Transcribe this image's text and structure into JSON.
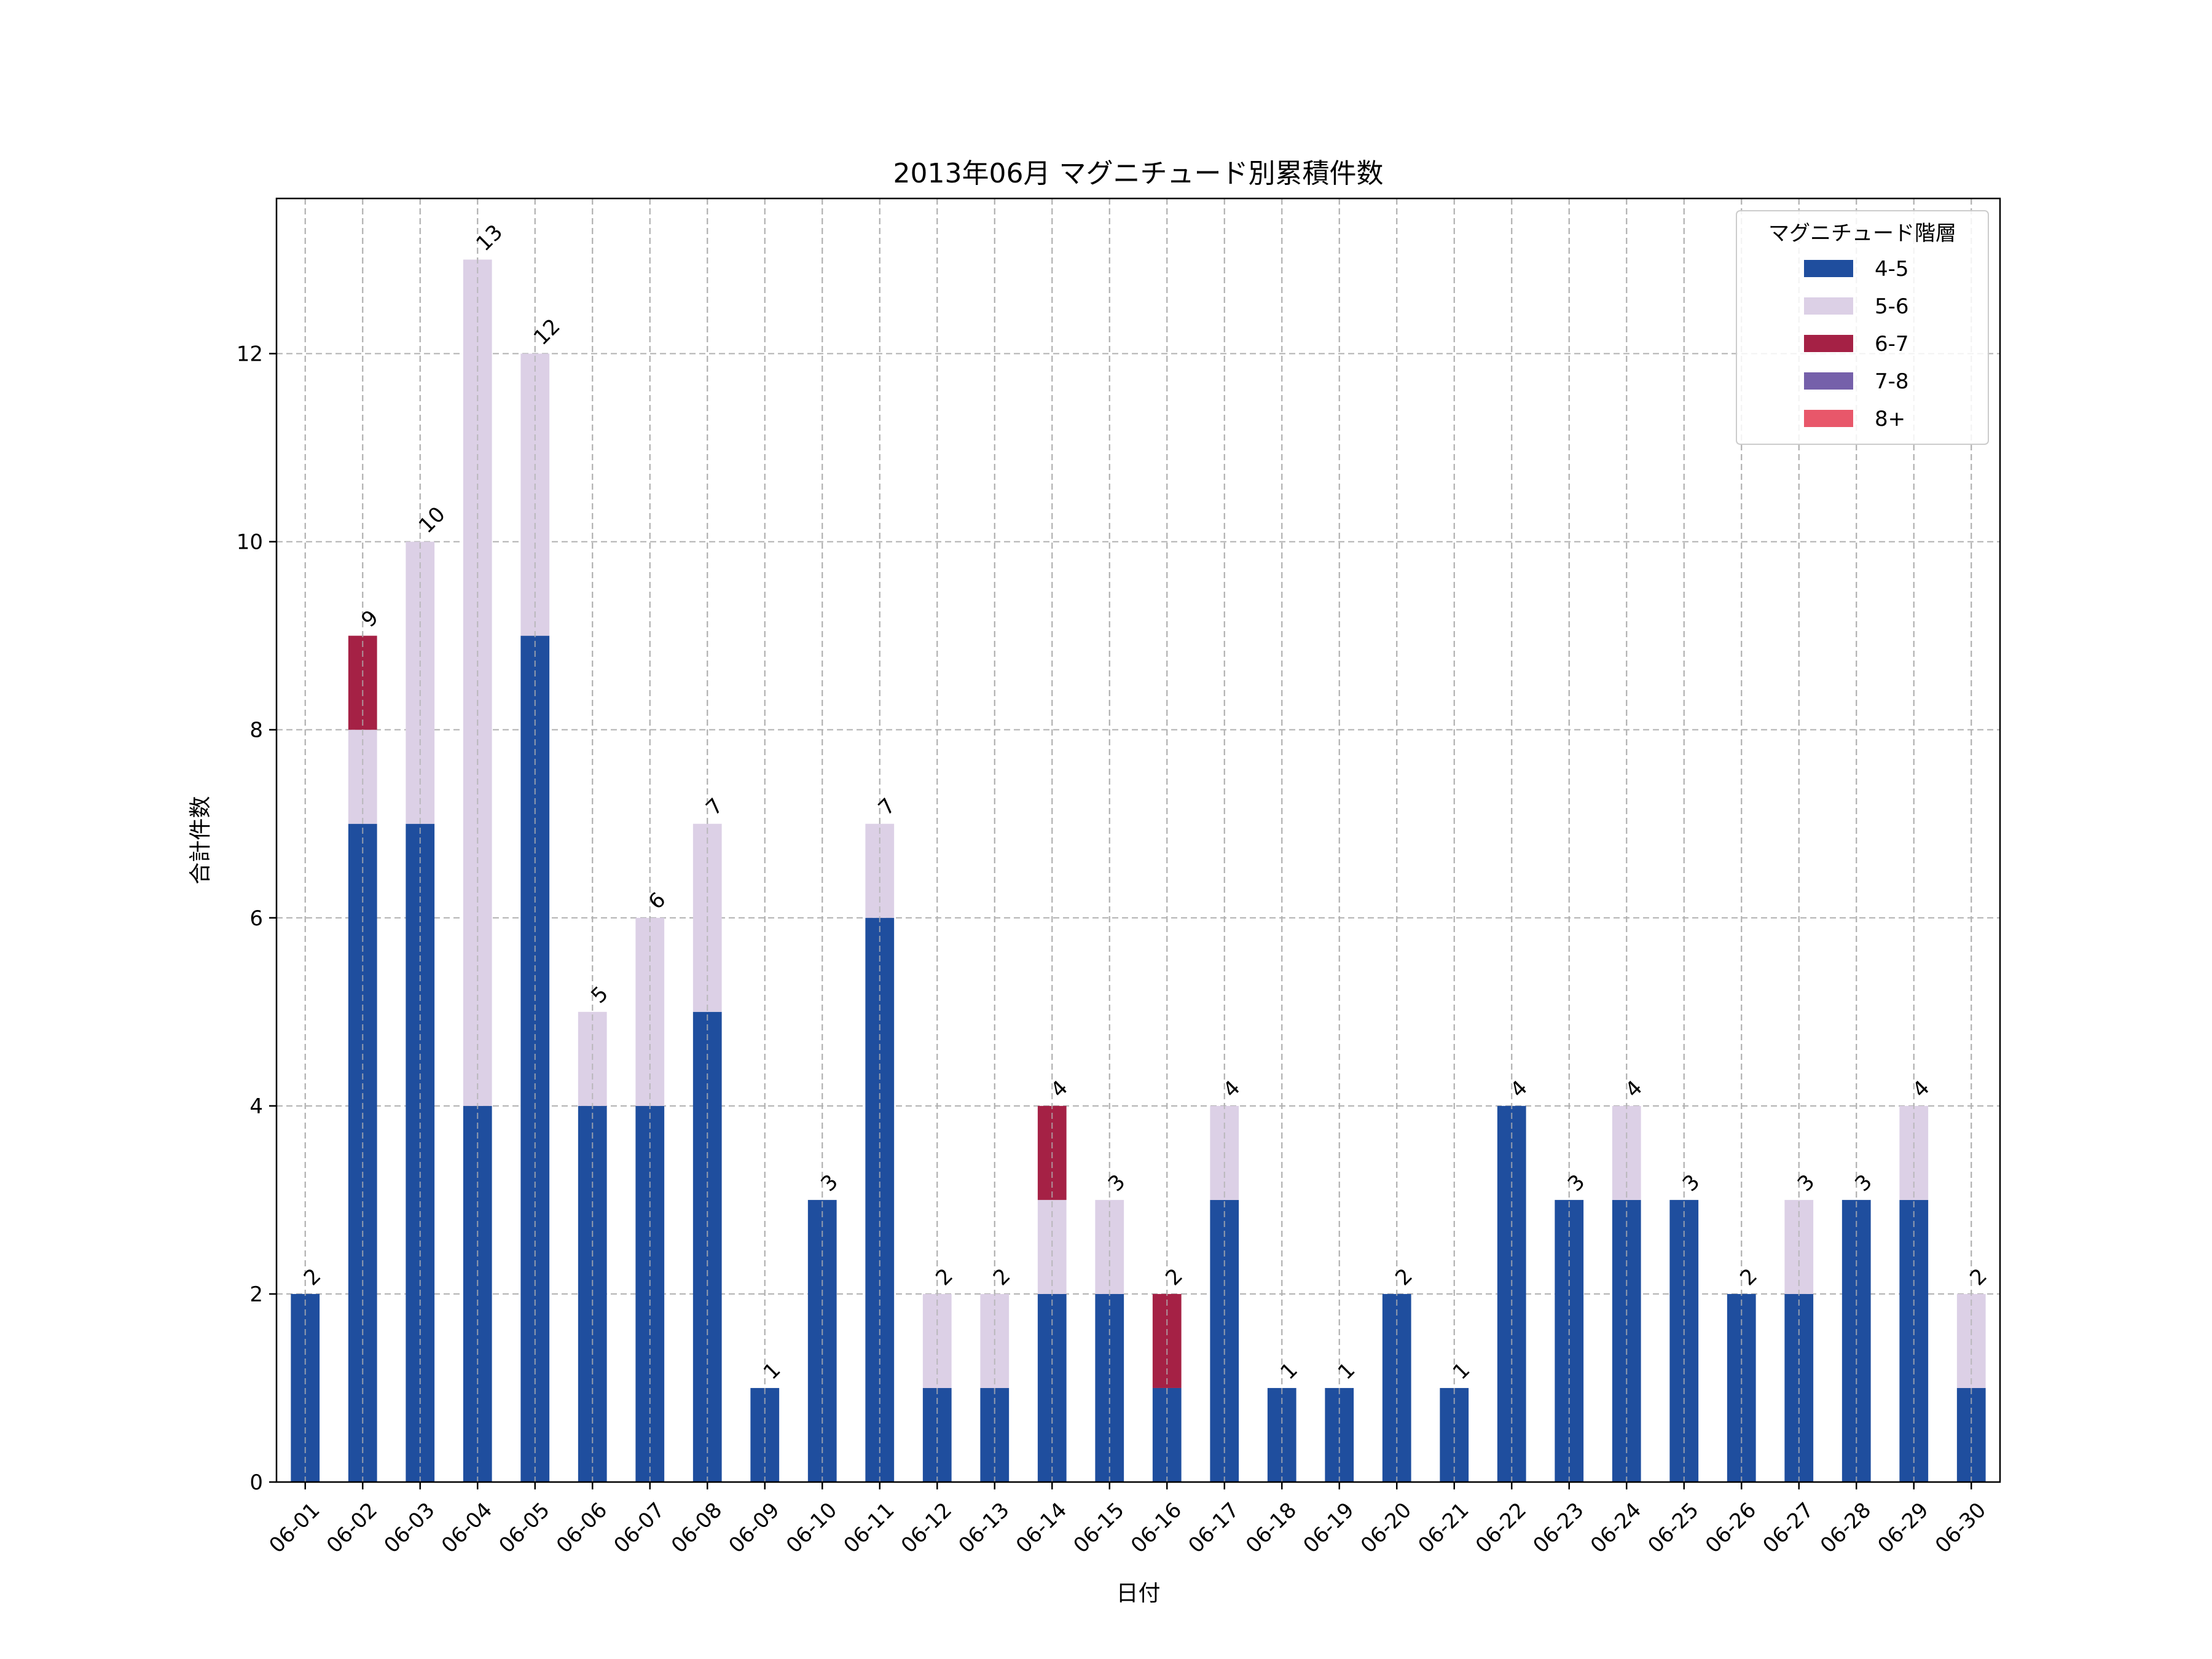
{
  "chart_data": {
    "type": "bar",
    "stacked": true,
    "title": "2013年06月 マグニチュード別累積件数",
    "xlabel": "日付",
    "ylabel": "合計件数",
    "ylim": [
      0,
      13.65
    ],
    "yticks": [
      0,
      2,
      4,
      6,
      8,
      10,
      12
    ],
    "grid": true,
    "legend_title": "マグニチュード階層",
    "legend_position": "top-right",
    "categories": [
      "06-01",
      "06-02",
      "06-03",
      "06-04",
      "06-05",
      "06-06",
      "06-07",
      "06-08",
      "06-09",
      "06-10",
      "06-11",
      "06-12",
      "06-13",
      "06-14",
      "06-15",
      "06-16",
      "06-17",
      "06-18",
      "06-19",
      "06-20",
      "06-21",
      "06-22",
      "06-23",
      "06-24",
      "06-25",
      "06-26",
      "06-27",
      "06-28",
      "06-29",
      "06-30"
    ],
    "series": [
      {
        "name": "4-5",
        "color": "#1f4e9e",
        "values": [
          2,
          7,
          7,
          4,
          9,
          4,
          4,
          5,
          1,
          3,
          6,
          1,
          1,
          2,
          2,
          1,
          3,
          1,
          1,
          2,
          1,
          4,
          3,
          3,
          3,
          2,
          2,
          3,
          3,
          1
        ]
      },
      {
        "name": "5-6",
        "color": "#dcd0e6",
        "values": [
          0,
          1,
          3,
          9,
          3,
          1,
          2,
          2,
          0,
          0,
          1,
          1,
          1,
          1,
          1,
          0,
          1,
          0,
          0,
          0,
          0,
          0,
          0,
          1,
          0,
          0,
          1,
          0,
          1,
          1
        ]
      },
      {
        "name": "6-7",
        "color": "#a52145",
        "values": [
          0,
          1,
          0,
          0,
          0,
          0,
          0,
          0,
          0,
          0,
          0,
          0,
          0,
          1,
          0,
          1,
          0,
          0,
          0,
          0,
          0,
          0,
          0,
          0,
          0,
          0,
          0,
          0,
          0,
          0
        ]
      },
      {
        "name": "7-8",
        "color": "#7560aa",
        "values": [
          0,
          0,
          0,
          0,
          0,
          0,
          0,
          0,
          0,
          0,
          0,
          0,
          0,
          0,
          0,
          0,
          0,
          0,
          0,
          0,
          0,
          0,
          0,
          0,
          0,
          0,
          0,
          0,
          0,
          0
        ]
      },
      {
        "name": "8+",
        "color": "#e8576a",
        "values": [
          0,
          0,
          0,
          0,
          0,
          0,
          0,
          0,
          0,
          0,
          0,
          0,
          0,
          0,
          0,
          0,
          0,
          0,
          0,
          0,
          0,
          0,
          0,
          0,
          0,
          0,
          0,
          0,
          0,
          0
        ]
      }
    ],
    "totals": [
      "2",
      "9",
      "10",
      "13",
      "12",
      "5",
      "6",
      "7",
      "1",
      "3",
      "7",
      "2",
      "2",
      "4",
      "3",
      "2",
      "4",
      "1",
      "1",
      "2",
      "1",
      "4",
      "3",
      "4",
      "3",
      "2",
      "3",
      "3",
      "4",
      "2"
    ]
  }
}
